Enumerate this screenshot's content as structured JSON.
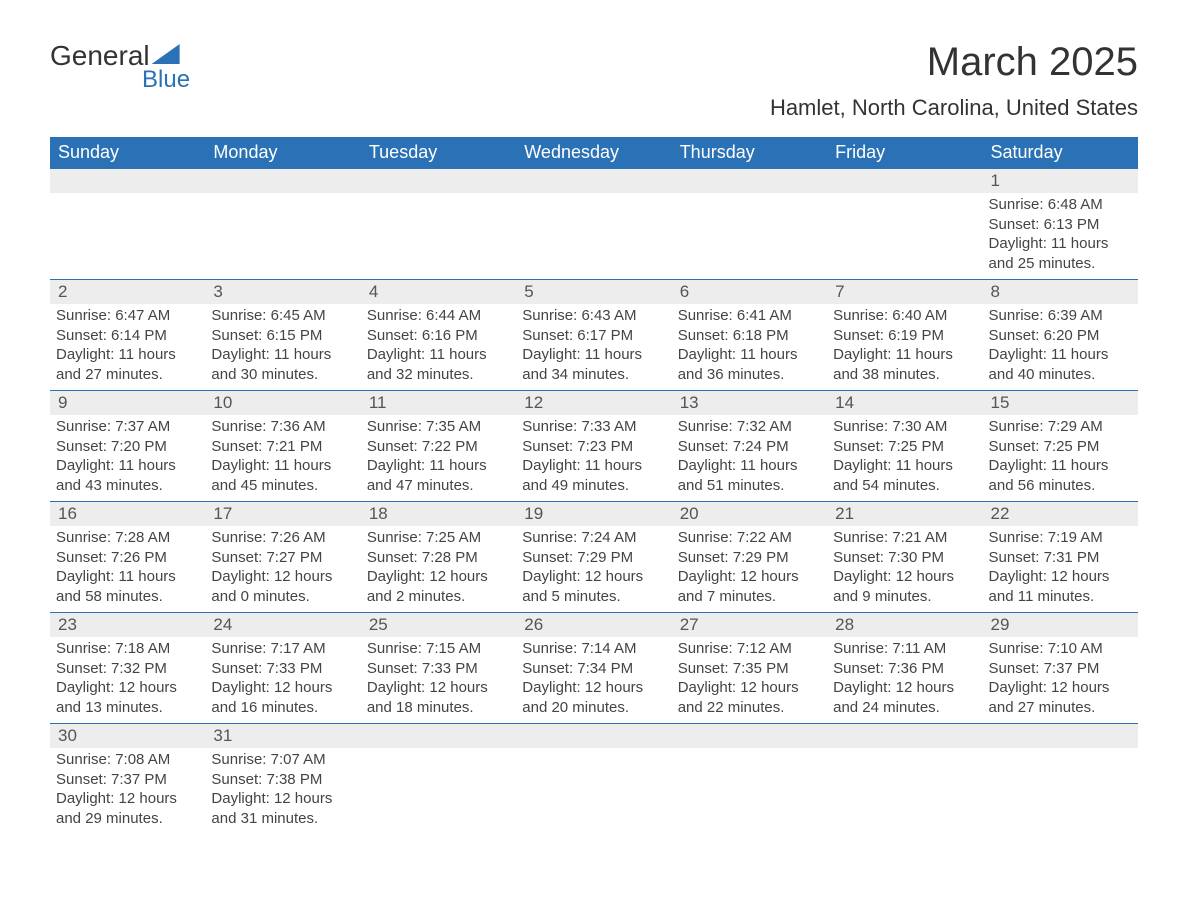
{
  "brand": {
    "name_part1": "General",
    "name_part2": "Blue",
    "accent_color": "#2a72b5"
  },
  "title": "March 2025",
  "location": "Hamlet, North Carolina, United States",
  "day_headers": [
    "Sunday",
    "Monday",
    "Tuesday",
    "Wednesday",
    "Thursday",
    "Friday",
    "Saturday"
  ],
  "colors": {
    "header_bg": "#2a72b5",
    "header_text": "#ffffff",
    "daynum_bg": "#ededed",
    "text": "#444444",
    "rule": "#2a72b5"
  },
  "weeks": [
    [
      {
        "num": "",
        "sunrise": "",
        "sunset": "",
        "daylight": ""
      },
      {
        "num": "",
        "sunrise": "",
        "sunset": "",
        "daylight": ""
      },
      {
        "num": "",
        "sunrise": "",
        "sunset": "",
        "daylight": ""
      },
      {
        "num": "",
        "sunrise": "",
        "sunset": "",
        "daylight": ""
      },
      {
        "num": "",
        "sunrise": "",
        "sunset": "",
        "daylight": ""
      },
      {
        "num": "",
        "sunrise": "",
        "sunset": "",
        "daylight": ""
      },
      {
        "num": "1",
        "sunrise": "Sunrise: 6:48 AM",
        "sunset": "Sunset: 6:13 PM",
        "daylight": "Daylight: 11 hours and 25 minutes."
      }
    ],
    [
      {
        "num": "2",
        "sunrise": "Sunrise: 6:47 AM",
        "sunset": "Sunset: 6:14 PM",
        "daylight": "Daylight: 11 hours and 27 minutes."
      },
      {
        "num": "3",
        "sunrise": "Sunrise: 6:45 AM",
        "sunset": "Sunset: 6:15 PM",
        "daylight": "Daylight: 11 hours and 30 minutes."
      },
      {
        "num": "4",
        "sunrise": "Sunrise: 6:44 AM",
        "sunset": "Sunset: 6:16 PM",
        "daylight": "Daylight: 11 hours and 32 minutes."
      },
      {
        "num": "5",
        "sunrise": "Sunrise: 6:43 AM",
        "sunset": "Sunset: 6:17 PM",
        "daylight": "Daylight: 11 hours and 34 minutes."
      },
      {
        "num": "6",
        "sunrise": "Sunrise: 6:41 AM",
        "sunset": "Sunset: 6:18 PM",
        "daylight": "Daylight: 11 hours and 36 minutes."
      },
      {
        "num": "7",
        "sunrise": "Sunrise: 6:40 AM",
        "sunset": "Sunset: 6:19 PM",
        "daylight": "Daylight: 11 hours and 38 minutes."
      },
      {
        "num": "8",
        "sunrise": "Sunrise: 6:39 AM",
        "sunset": "Sunset: 6:20 PM",
        "daylight": "Daylight: 11 hours and 40 minutes."
      }
    ],
    [
      {
        "num": "9",
        "sunrise": "Sunrise: 7:37 AM",
        "sunset": "Sunset: 7:20 PM",
        "daylight": "Daylight: 11 hours and 43 minutes."
      },
      {
        "num": "10",
        "sunrise": "Sunrise: 7:36 AM",
        "sunset": "Sunset: 7:21 PM",
        "daylight": "Daylight: 11 hours and 45 minutes."
      },
      {
        "num": "11",
        "sunrise": "Sunrise: 7:35 AM",
        "sunset": "Sunset: 7:22 PM",
        "daylight": "Daylight: 11 hours and 47 minutes."
      },
      {
        "num": "12",
        "sunrise": "Sunrise: 7:33 AM",
        "sunset": "Sunset: 7:23 PM",
        "daylight": "Daylight: 11 hours and 49 minutes."
      },
      {
        "num": "13",
        "sunrise": "Sunrise: 7:32 AM",
        "sunset": "Sunset: 7:24 PM",
        "daylight": "Daylight: 11 hours and 51 minutes."
      },
      {
        "num": "14",
        "sunrise": "Sunrise: 7:30 AM",
        "sunset": "Sunset: 7:25 PM",
        "daylight": "Daylight: 11 hours and 54 minutes."
      },
      {
        "num": "15",
        "sunrise": "Sunrise: 7:29 AM",
        "sunset": "Sunset: 7:25 PM",
        "daylight": "Daylight: 11 hours and 56 minutes."
      }
    ],
    [
      {
        "num": "16",
        "sunrise": "Sunrise: 7:28 AM",
        "sunset": "Sunset: 7:26 PM",
        "daylight": "Daylight: 11 hours and 58 minutes."
      },
      {
        "num": "17",
        "sunrise": "Sunrise: 7:26 AM",
        "sunset": "Sunset: 7:27 PM",
        "daylight": "Daylight: 12 hours and 0 minutes."
      },
      {
        "num": "18",
        "sunrise": "Sunrise: 7:25 AM",
        "sunset": "Sunset: 7:28 PM",
        "daylight": "Daylight: 12 hours and 2 minutes."
      },
      {
        "num": "19",
        "sunrise": "Sunrise: 7:24 AM",
        "sunset": "Sunset: 7:29 PM",
        "daylight": "Daylight: 12 hours and 5 minutes."
      },
      {
        "num": "20",
        "sunrise": "Sunrise: 7:22 AM",
        "sunset": "Sunset: 7:29 PM",
        "daylight": "Daylight: 12 hours and 7 minutes."
      },
      {
        "num": "21",
        "sunrise": "Sunrise: 7:21 AM",
        "sunset": "Sunset: 7:30 PM",
        "daylight": "Daylight: 12 hours and 9 minutes."
      },
      {
        "num": "22",
        "sunrise": "Sunrise: 7:19 AM",
        "sunset": "Sunset: 7:31 PM",
        "daylight": "Daylight: 12 hours and 11 minutes."
      }
    ],
    [
      {
        "num": "23",
        "sunrise": "Sunrise: 7:18 AM",
        "sunset": "Sunset: 7:32 PM",
        "daylight": "Daylight: 12 hours and 13 minutes."
      },
      {
        "num": "24",
        "sunrise": "Sunrise: 7:17 AM",
        "sunset": "Sunset: 7:33 PM",
        "daylight": "Daylight: 12 hours and 16 minutes."
      },
      {
        "num": "25",
        "sunrise": "Sunrise: 7:15 AM",
        "sunset": "Sunset: 7:33 PM",
        "daylight": "Daylight: 12 hours and 18 minutes."
      },
      {
        "num": "26",
        "sunrise": "Sunrise: 7:14 AM",
        "sunset": "Sunset: 7:34 PM",
        "daylight": "Daylight: 12 hours and 20 minutes."
      },
      {
        "num": "27",
        "sunrise": "Sunrise: 7:12 AM",
        "sunset": "Sunset: 7:35 PM",
        "daylight": "Daylight: 12 hours and 22 minutes."
      },
      {
        "num": "28",
        "sunrise": "Sunrise: 7:11 AM",
        "sunset": "Sunset: 7:36 PM",
        "daylight": "Daylight: 12 hours and 24 minutes."
      },
      {
        "num": "29",
        "sunrise": "Sunrise: 7:10 AM",
        "sunset": "Sunset: 7:37 PM",
        "daylight": "Daylight: 12 hours and 27 minutes."
      }
    ],
    [
      {
        "num": "30",
        "sunrise": "Sunrise: 7:08 AM",
        "sunset": "Sunset: 7:37 PM",
        "daylight": "Daylight: 12 hours and 29 minutes."
      },
      {
        "num": "31",
        "sunrise": "Sunrise: 7:07 AM",
        "sunset": "Sunset: 7:38 PM",
        "daylight": "Daylight: 12 hours and 31 minutes."
      },
      {
        "num": "",
        "sunrise": "",
        "sunset": "",
        "daylight": ""
      },
      {
        "num": "",
        "sunrise": "",
        "sunset": "",
        "daylight": ""
      },
      {
        "num": "",
        "sunrise": "",
        "sunset": "",
        "daylight": ""
      },
      {
        "num": "",
        "sunrise": "",
        "sunset": "",
        "daylight": ""
      },
      {
        "num": "",
        "sunrise": "",
        "sunset": "",
        "daylight": ""
      }
    ]
  ]
}
